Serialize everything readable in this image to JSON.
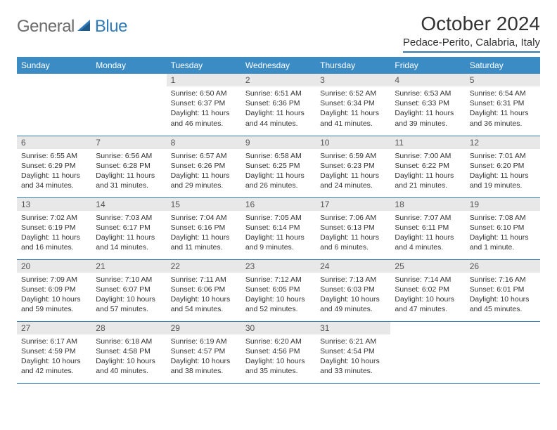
{
  "brand": {
    "text1": "General",
    "text2": "Blue"
  },
  "title": "October 2024",
  "location": "Pedace-Perito, Calabria, Italy",
  "colors": {
    "header_bg": "#3b8bc4",
    "accent": "#2f7ab8",
    "daynum_bg": "#e8e8e8",
    "text": "#333333",
    "logo_gray": "#6b6b6b"
  },
  "dayNames": [
    "Sunday",
    "Monday",
    "Tuesday",
    "Wednesday",
    "Thursday",
    "Friday",
    "Saturday"
  ],
  "weeks": [
    [
      null,
      null,
      {
        "n": "1",
        "sr": "6:50 AM",
        "ss": "6:37 PM",
        "dl": "11 hours and 46 minutes."
      },
      {
        "n": "2",
        "sr": "6:51 AM",
        "ss": "6:36 PM",
        "dl": "11 hours and 44 minutes."
      },
      {
        "n": "3",
        "sr": "6:52 AM",
        "ss": "6:34 PM",
        "dl": "11 hours and 41 minutes."
      },
      {
        "n": "4",
        "sr": "6:53 AM",
        "ss": "6:33 PM",
        "dl": "11 hours and 39 minutes."
      },
      {
        "n": "5",
        "sr": "6:54 AM",
        "ss": "6:31 PM",
        "dl": "11 hours and 36 minutes."
      }
    ],
    [
      {
        "n": "6",
        "sr": "6:55 AM",
        "ss": "6:29 PM",
        "dl": "11 hours and 34 minutes."
      },
      {
        "n": "7",
        "sr": "6:56 AM",
        "ss": "6:28 PM",
        "dl": "11 hours and 31 minutes."
      },
      {
        "n": "8",
        "sr": "6:57 AM",
        "ss": "6:26 PM",
        "dl": "11 hours and 29 minutes."
      },
      {
        "n": "9",
        "sr": "6:58 AM",
        "ss": "6:25 PM",
        "dl": "11 hours and 26 minutes."
      },
      {
        "n": "10",
        "sr": "6:59 AM",
        "ss": "6:23 PM",
        "dl": "11 hours and 24 minutes."
      },
      {
        "n": "11",
        "sr": "7:00 AM",
        "ss": "6:22 PM",
        "dl": "11 hours and 21 minutes."
      },
      {
        "n": "12",
        "sr": "7:01 AM",
        "ss": "6:20 PM",
        "dl": "11 hours and 19 minutes."
      }
    ],
    [
      {
        "n": "13",
        "sr": "7:02 AM",
        "ss": "6:19 PM",
        "dl": "11 hours and 16 minutes."
      },
      {
        "n": "14",
        "sr": "7:03 AM",
        "ss": "6:17 PM",
        "dl": "11 hours and 14 minutes."
      },
      {
        "n": "15",
        "sr": "7:04 AM",
        "ss": "6:16 PM",
        "dl": "11 hours and 11 minutes."
      },
      {
        "n": "16",
        "sr": "7:05 AM",
        "ss": "6:14 PM",
        "dl": "11 hours and 9 minutes."
      },
      {
        "n": "17",
        "sr": "7:06 AM",
        "ss": "6:13 PM",
        "dl": "11 hours and 6 minutes."
      },
      {
        "n": "18",
        "sr": "7:07 AM",
        "ss": "6:11 PM",
        "dl": "11 hours and 4 minutes."
      },
      {
        "n": "19",
        "sr": "7:08 AM",
        "ss": "6:10 PM",
        "dl": "11 hours and 1 minute."
      }
    ],
    [
      {
        "n": "20",
        "sr": "7:09 AM",
        "ss": "6:09 PM",
        "dl": "10 hours and 59 minutes."
      },
      {
        "n": "21",
        "sr": "7:10 AM",
        "ss": "6:07 PM",
        "dl": "10 hours and 57 minutes."
      },
      {
        "n": "22",
        "sr": "7:11 AM",
        "ss": "6:06 PM",
        "dl": "10 hours and 54 minutes."
      },
      {
        "n": "23",
        "sr": "7:12 AM",
        "ss": "6:05 PM",
        "dl": "10 hours and 52 minutes."
      },
      {
        "n": "24",
        "sr": "7:13 AM",
        "ss": "6:03 PM",
        "dl": "10 hours and 49 minutes."
      },
      {
        "n": "25",
        "sr": "7:14 AM",
        "ss": "6:02 PM",
        "dl": "10 hours and 47 minutes."
      },
      {
        "n": "26",
        "sr": "7:16 AM",
        "ss": "6:01 PM",
        "dl": "10 hours and 45 minutes."
      }
    ],
    [
      {
        "n": "27",
        "sr": "6:17 AM",
        "ss": "4:59 PM",
        "dl": "10 hours and 42 minutes."
      },
      {
        "n": "28",
        "sr": "6:18 AM",
        "ss": "4:58 PM",
        "dl": "10 hours and 40 minutes."
      },
      {
        "n": "29",
        "sr": "6:19 AM",
        "ss": "4:57 PM",
        "dl": "10 hours and 38 minutes."
      },
      {
        "n": "30",
        "sr": "6:20 AM",
        "ss": "4:56 PM",
        "dl": "10 hours and 35 minutes."
      },
      {
        "n": "31",
        "sr": "6:21 AM",
        "ss": "4:54 PM",
        "dl": "10 hours and 33 minutes."
      },
      null,
      null
    ]
  ],
  "labels": {
    "sunrise": "Sunrise:",
    "sunset": "Sunset:",
    "daylight": "Daylight:"
  }
}
